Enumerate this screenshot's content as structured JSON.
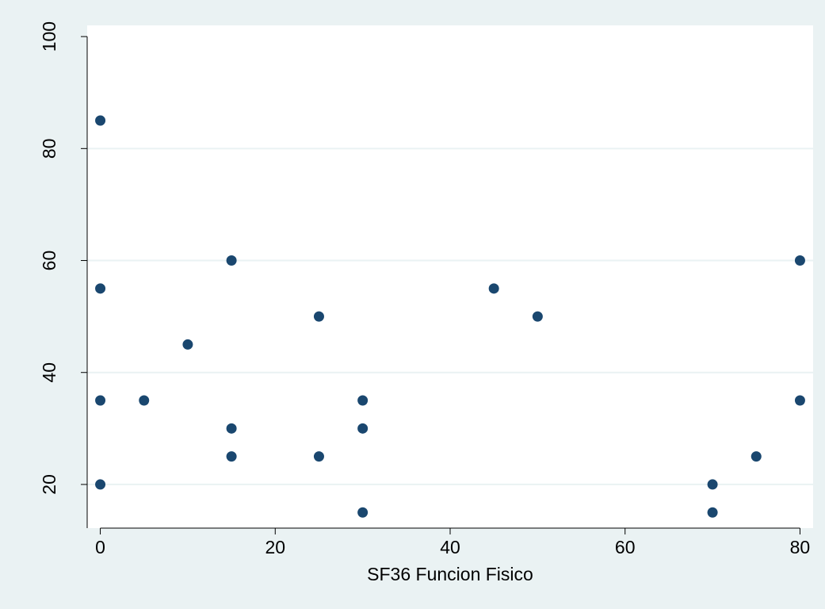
{
  "chart_data": {
    "type": "scatter",
    "title": "",
    "xlabel": "SF36 Funcion Fisico",
    "ylabel": "",
    "xlim": [
      -1.5,
      81.5
    ],
    "ylim": [
      12.2,
      102
    ],
    "xticks": [
      0,
      20,
      40,
      60,
      80
    ],
    "xtick_labels": [
      "0",
      "20",
      "40",
      "60",
      "80"
    ],
    "yticks": [
      20,
      40,
      60,
      80,
      100
    ],
    "ytick_labels": [
      "20",
      "40",
      "60",
      "80",
      "100"
    ],
    "grid": "horizontal",
    "legend": "none",
    "colors": {
      "background": "#eaf2f3",
      "plot_area": "#ffffff",
      "grid": "#eaf2f3",
      "marker": "#1a476f",
      "axis": "#000000"
    },
    "points": [
      {
        "x": 0,
        "y": 85
      },
      {
        "x": 0,
        "y": 55
      },
      {
        "x": 0,
        "y": 35
      },
      {
        "x": 0,
        "y": 20
      },
      {
        "x": 5,
        "y": 35
      },
      {
        "x": 10,
        "y": 45
      },
      {
        "x": 15,
        "y": 60
      },
      {
        "x": 15,
        "y": 30
      },
      {
        "x": 15,
        "y": 25
      },
      {
        "x": 25,
        "y": 50
      },
      {
        "x": 25,
        "y": 25
      },
      {
        "x": 30,
        "y": 35
      },
      {
        "x": 30,
        "y": 30
      },
      {
        "x": 30,
        "y": 15
      },
      {
        "x": 45,
        "y": 55
      },
      {
        "x": 50,
        "y": 50
      },
      {
        "x": 70,
        "y": 20
      },
      {
        "x": 70,
        "y": 15
      },
      {
        "x": 75,
        "y": 25
      },
      {
        "x": 80,
        "y": 60
      },
      {
        "x": 80,
        "y": 35
      }
    ]
  }
}
